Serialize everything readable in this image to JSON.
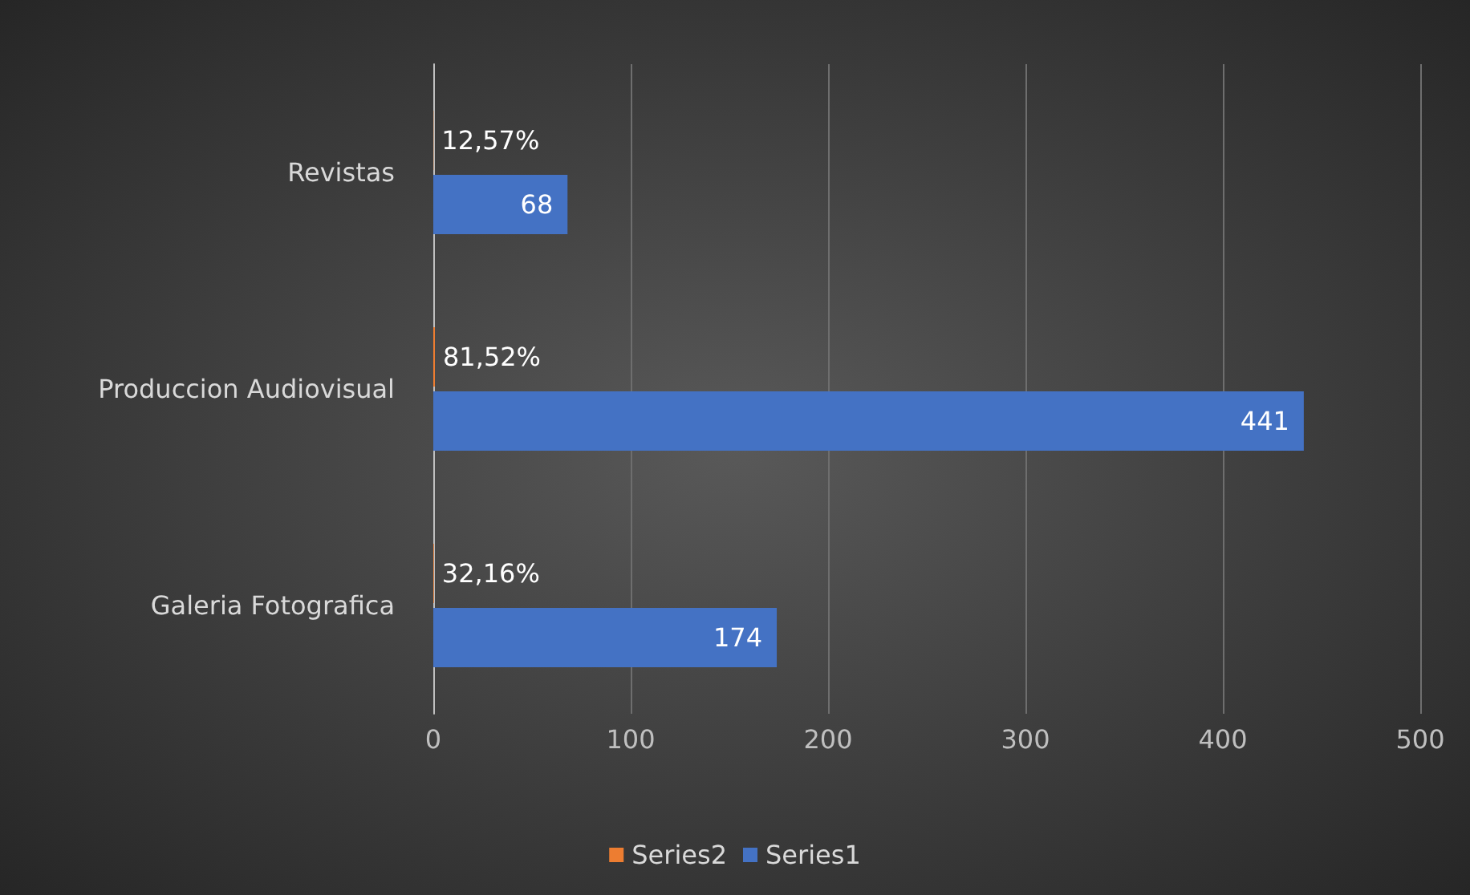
{
  "chart_data": {
    "type": "bar",
    "orientation": "horizontal",
    "categories": [
      "Revistas",
      "Produccion Audiovisual",
      "Galeria Fotografica"
    ],
    "series": [
      {
        "name": "Series2",
        "color": "#ed7d31",
        "values": [
          0.1257,
          0.8152,
          0.3216
        ],
        "value_labels": [
          "12,57%",
          "81,52%",
          "32,16%"
        ]
      },
      {
        "name": "Series1",
        "color": "#4472c4",
        "values": [
          68,
          441,
          174
        ],
        "value_labels": [
          "68",
          "441",
          "174"
        ]
      }
    ],
    "xlim": [
      0,
      500
    ],
    "xticks": [
      0,
      100,
      200,
      300,
      400,
      500
    ],
    "grid": "x",
    "legend": "bottom"
  }
}
